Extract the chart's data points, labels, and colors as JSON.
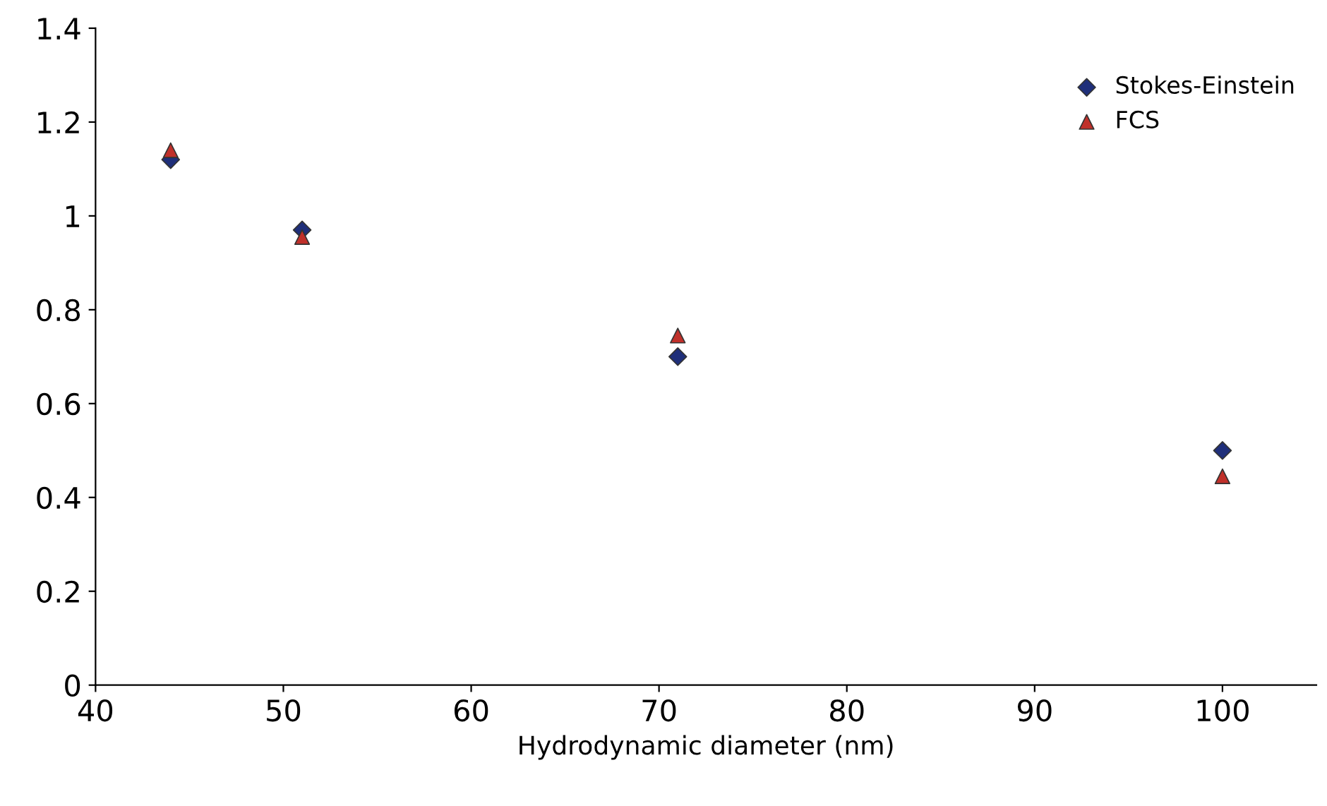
{
  "chart_data": {
    "type": "scatter",
    "xlabel": "Hydrodynamic diameter (nm)",
    "xlim": [
      40,
      105
    ],
    "xticks": [
      40,
      50,
      60,
      70,
      80,
      90,
      100
    ],
    "ylim": [
      0,
      1.4
    ],
    "yticks": [
      0,
      0.2,
      0.4,
      0.6,
      0.8,
      1,
      1.2,
      1.4
    ],
    "grid": false,
    "legend": "top right",
    "series": [
      {
        "name": "Stokes-Einstein",
        "color": "#1f2f7a",
        "marker": "diamond",
        "x": [
          44,
          51,
          71,
          100
        ],
        "values": [
          1.12,
          0.97,
          0.7,
          0.5
        ]
      },
      {
        "name": "FCS",
        "color": "#c0302a",
        "marker": "triangle",
        "x": [
          44,
          51,
          71,
          100
        ],
        "values": [
          1.14,
          0.955,
          0.745,
          0.445
        ]
      }
    ]
  }
}
